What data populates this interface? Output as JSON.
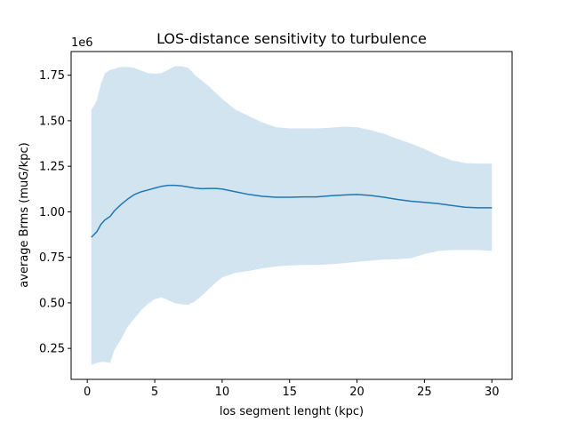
{
  "chart_data": {
    "type": "line",
    "title": "LOS-distance sensitivity to turbulence",
    "xlabel": "los segment lenght (kpc)",
    "ylabel": "average Brms (muG/kpc)",
    "y_offset_label": "1e6",
    "xlim": [
      -1.2,
      31.5
    ],
    "ylim": [
      80000,
      1880000
    ],
    "x_ticks": [
      0,
      5,
      10,
      15,
      20,
      25,
      30
    ],
    "x_tick_labels": [
      "0",
      "5",
      "10",
      "15",
      "20",
      "25",
      "30"
    ],
    "y_ticks": [
      250000,
      500000,
      750000,
      1000000,
      1250000,
      1500000,
      1750000
    ],
    "y_tick_labels": [
      "0.25",
      "0.50",
      "0.75",
      "1.00",
      "1.25",
      "1.50",
      "1.75"
    ],
    "grid": false,
    "line_color": "#1f77b4",
    "band_color": "#1f77b4",
    "band_opacity": 0.2,
    "series": [
      {
        "x": [
          0.3,
          0.7,
          1.0,
          1.3,
          1.7,
          2.0,
          2.5,
          3.0,
          3.5,
          4.0,
          4.5,
          5.0,
          5.5,
          6.0,
          6.5,
          7.0,
          7.5,
          8.0,
          8.5,
          9.0,
          9.5,
          10.0,
          11.0,
          12.0,
          13.0,
          14.0,
          15.0,
          16.0,
          17.0,
          18.0,
          19.0,
          20.0,
          21.0,
          22.0,
          23.0,
          24.0,
          25.0,
          26.0,
          27.0,
          28.0,
          29.0,
          30.0
        ],
        "y": [
          860000,
          890000,
          930000,
          955000,
          975000,
          1005000,
          1040000,
          1070000,
          1095000,
          1110000,
          1120000,
          1130000,
          1140000,
          1145000,
          1145000,
          1142000,
          1136000,
          1130000,
          1127000,
          1128000,
          1128000,
          1125000,
          1110000,
          1095000,
          1085000,
          1080000,
          1080000,
          1082000,
          1082000,
          1088000,
          1092000,
          1095000,
          1090000,
          1080000,
          1068000,
          1058000,
          1052000,
          1045000,
          1035000,
          1025000,
          1022000,
          1022000
        ],
        "upper": [
          1560000,
          1610000,
          1700000,
          1760000,
          1780000,
          1785000,
          1795000,
          1795000,
          1790000,
          1775000,
          1762000,
          1758000,
          1762000,
          1780000,
          1800000,
          1798000,
          1790000,
          1750000,
          1720000,
          1690000,
          1655000,
          1620000,
          1560000,
          1525000,
          1490000,
          1465000,
          1458000,
          1458000,
          1458000,
          1462000,
          1468000,
          1465000,
          1448000,
          1428000,
          1400000,
          1375000,
          1345000,
          1310000,
          1283000,
          1268000,
          1265000,
          1265000
        ],
        "lower": [
          160000,
          170000,
          175000,
          175000,
          170000,
          240000,
          300000,
          370000,
          415000,
          460000,
          495000,
          520000,
          530000,
          515000,
          498000,
          492000,
          490000,
          510000,
          540000,
          575000,
          610000,
          640000,
          665000,
          675000,
          690000,
          700000,
          705000,
          708000,
          708000,
          712000,
          718000,
          725000,
          732000,
          738000,
          740000,
          745000,
          768000,
          785000,
          790000,
          790000,
          790000,
          785000
        ]
      }
    ]
  }
}
